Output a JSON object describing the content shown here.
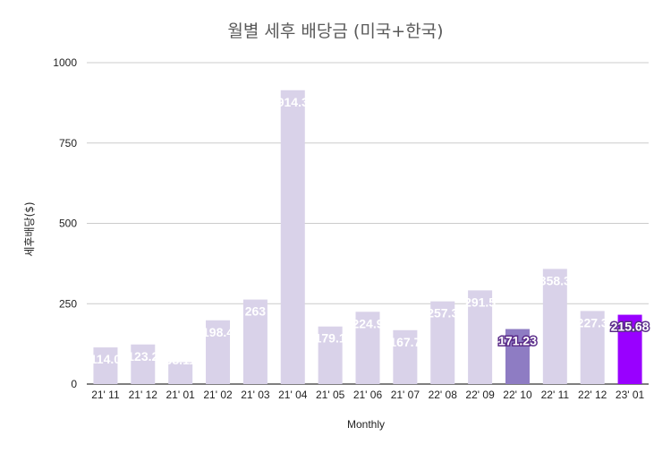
{
  "chart_data": {
    "type": "bar",
    "title": "월별 세후 배당금 (미국+한국)",
    "xlabel": "Monthly",
    "ylabel": "세후배당($)",
    "ylim": [
      0,
      1000
    ],
    "yticks": [
      0,
      250,
      500,
      750,
      1000
    ],
    "grid": true,
    "categories": [
      "21' 11",
      "21' 12",
      "21' 01",
      "21' 02",
      "21' 03",
      "21' 04",
      "21' 05",
      "21' 06",
      "21' 07",
      "22' 08",
      "22' 09",
      "22' 10",
      "22' 11",
      "22' 12",
      "23' 01"
    ],
    "values": [
      114.0,
      123.2,
      68.11,
      198.4,
      263,
      914.3,
      179.1,
      224.9,
      167.7,
      257.3,
      291.5,
      171.23,
      358.3,
      227.3,
      215.68
    ],
    "data_labels": [
      "114.0",
      "123.2",
      "68.11",
      "198.4",
      "263",
      "914.3",
      "179.1",
      "224.9",
      "167.7",
      "257.3",
      "291.5",
      "171.23",
      "358.3",
      "227.3",
      "215.68"
    ],
    "bar_colors": [
      "#d9d2e9",
      "#d9d2e9",
      "#d9d2e9",
      "#d9d2e9",
      "#d9d2e9",
      "#d9d2e9",
      "#d9d2e9",
      "#d9d2e9",
      "#d9d2e9",
      "#d9d2e9",
      "#d9d2e9",
      "#8e7cc3",
      "#d9d2e9",
      "#d9d2e9",
      "#9900ff"
    ]
  }
}
